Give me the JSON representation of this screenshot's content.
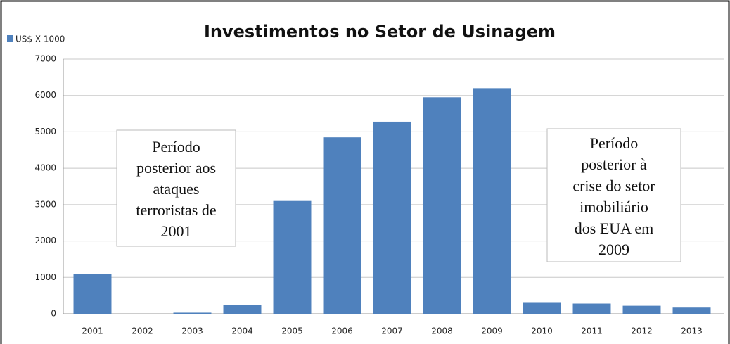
{
  "chart_data": {
    "type": "bar",
    "title": "Investimentos no Setor de Usinagem",
    "categories": [
      "2001",
      "2002",
      "2003",
      "2004",
      "2005",
      "2006",
      "2007",
      "2008",
      "2009",
      "2010",
      "2011",
      "2012",
      "2013"
    ],
    "series": [
      {
        "name": "US$ X 1000",
        "color": "#4f81bd",
        "values": [
          1100,
          0,
          30,
          250,
          3100,
          4850,
          5280,
          5950,
          6200,
          300,
          280,
          220,
          170
        ]
      }
    ],
    "ylim": [
      0,
      7000
    ],
    "yticks": [
      0,
      1000,
      2000,
      3000,
      4000,
      5000,
      6000,
      7000
    ],
    "grid": true,
    "legend": "top-left",
    "annotations": [
      {
        "lines": [
          "Período",
          "posterior aos",
          "ataques",
          "terroristas de",
          "2001"
        ]
      },
      {
        "lines": [
          "Período",
          "posterior à",
          "crise do setor",
          "imobiliário",
          "dos EUA em",
          "2009"
        ]
      }
    ]
  }
}
